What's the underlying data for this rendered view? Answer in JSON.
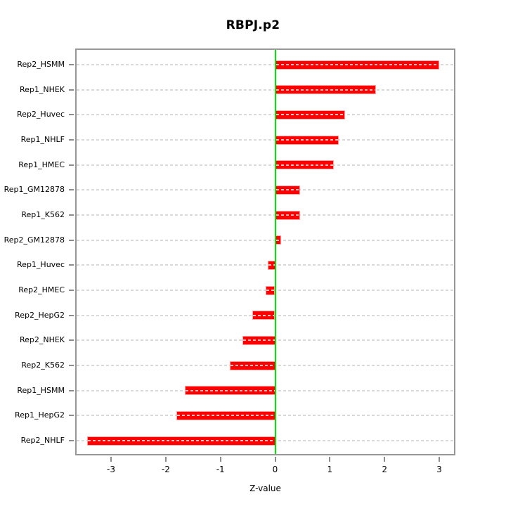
{
  "chart_data": {
    "type": "bar",
    "orientation": "horizontal",
    "title": "RBPJ.p2",
    "xlabel": "Z-value",
    "categories": [
      "Rep2_HSMM",
      "Rep1_NHEK",
      "Rep2_Huvec",
      "Rep1_NHLF",
      "Rep1_HMEC",
      "Rep1_GM12878",
      "Rep1_K562",
      "Rep2_GM12878",
      "Rep1_Huvec",
      "Rep2_HMEC",
      "Rep2_HepG2",
      "Rep2_NHEK",
      "Rep2_K562",
      "Rep1_HSMM",
      "Rep1_HepG2",
      "Rep2_NHLF"
    ],
    "values": [
      3.0,
      1.84,
      1.28,
      1.16,
      1.07,
      0.46,
      0.45,
      0.11,
      -0.14,
      -0.17,
      -0.42,
      -0.6,
      -0.83,
      -1.65,
      -1.81,
      -3.44
    ],
    "xticks": [
      -3,
      -2,
      -1,
      0,
      1,
      2,
      3
    ],
    "xlim": [
      -3.63,
      3.27
    ],
    "grid": true,
    "legend": false,
    "colors": {
      "bar": "#fe0000",
      "bar_border": "#ff9f9f",
      "zero_line": "#00e400",
      "gridline": "#d9d9d9",
      "axis": "#8c8c8c",
      "text": "#000000",
      "background": "#ffffff"
    }
  }
}
